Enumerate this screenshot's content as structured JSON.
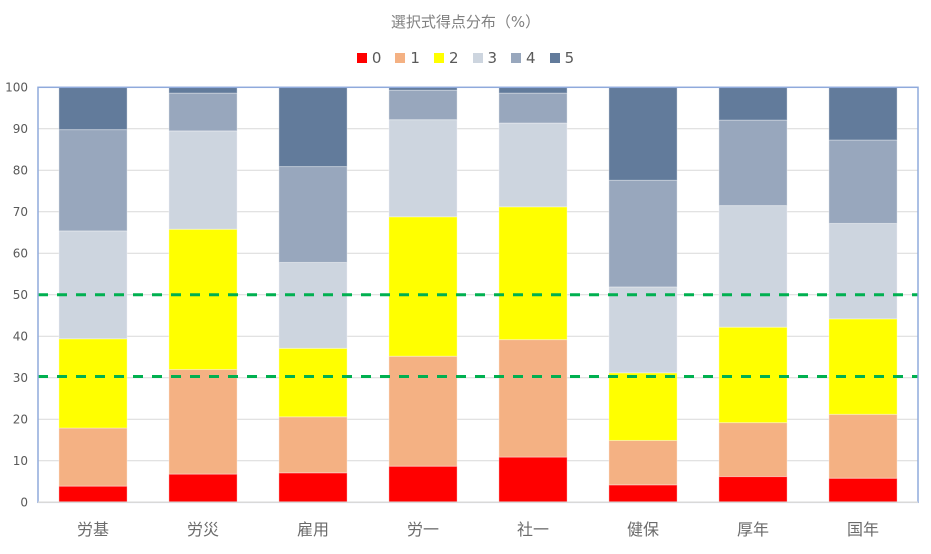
{
  "chart_data": {
    "type": "bar",
    "stacked": true,
    "title": "選択式得点分布（%）",
    "xlabel": "",
    "ylabel": "",
    "ylim": [
      0,
      100
    ],
    "yticks": [
      0,
      10,
      20,
      30,
      40,
      50,
      60,
      70,
      80,
      90,
      100
    ],
    "grid": true,
    "legend_position": "top",
    "categories": [
      "労基",
      "労災",
      "雇用",
      "労一",
      "社一",
      "健保",
      "厚年",
      "国年"
    ],
    "series": [
      {
        "name": "0",
        "color": "#ff0000",
        "values": [
          3.9,
          6.8,
          7.1,
          8.7,
          10.9,
          4.2,
          6.2,
          5.8
        ]
      },
      {
        "name": "1",
        "color": "#f4b183",
        "values": [
          14.0,
          25.2,
          13.5,
          26.5,
          28.3,
          10.7,
          13.0,
          15.4
        ]
      },
      {
        "name": "2",
        "color": "#ffff00",
        "values": [
          21.5,
          33.8,
          16.5,
          33.6,
          32.0,
          16.3,
          23.0,
          23.0
        ]
      },
      {
        "name": "3",
        "color": "#cdd5df",
        "values": [
          26.0,
          23.7,
          20.7,
          23.4,
          20.2,
          20.7,
          29.3,
          23.0
        ]
      },
      {
        "name": "4",
        "color": "#98a7bd",
        "values": [
          24.4,
          9.1,
          23.1,
          7.1,
          7.2,
          25.7,
          20.6,
          20.1
        ]
      },
      {
        "name": "5",
        "color": "#627b9b",
        "values": [
          10.2,
          1.4,
          19.1,
          0.7,
          1.4,
          22.4,
          7.9,
          12.7
        ]
      }
    ],
    "reference_lines": [
      {
        "y": 50,
        "color": "#00b050",
        "style": "dashed"
      },
      {
        "y": 30.3,
        "color": "#00b050",
        "style": "dashed"
      }
    ]
  }
}
